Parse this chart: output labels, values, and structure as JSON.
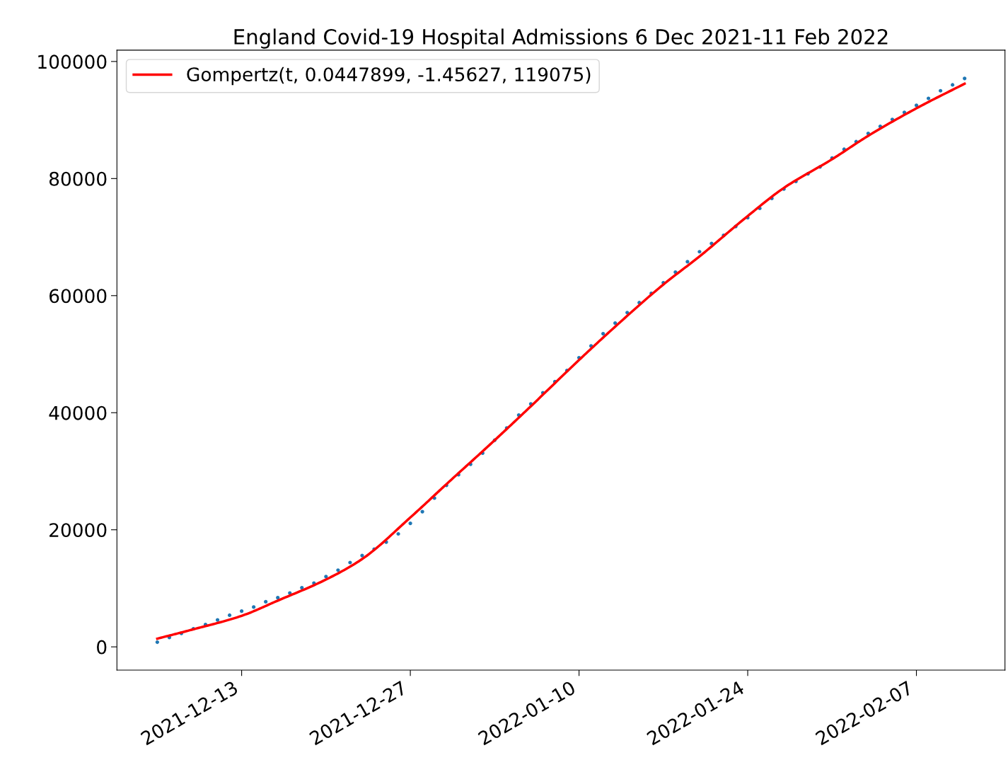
{
  "chart_data": {
    "type": "scatter",
    "title": "England Covid-19 Hospital Admissions 6 Dec 2021-11 Feb 2022",
    "series": [
      {
        "color": "#1f77b4",
        "marker": "circle",
        "x": [
          "2021-12-06",
          "2021-12-07",
          "2021-12-08",
          "2021-12-09",
          "2021-12-10",
          "2021-12-11",
          "2021-12-12",
          "2021-12-13",
          "2021-12-14",
          "2021-12-15",
          "2021-12-16",
          "2021-12-17",
          "2021-12-18",
          "2021-12-19",
          "2021-12-20",
          "2021-12-21",
          "2021-12-22",
          "2021-12-23",
          "2021-12-24",
          "2021-12-25",
          "2021-12-26",
          "2021-12-27",
          "2021-12-28",
          "2021-12-29",
          "2021-12-30",
          "2021-12-31",
          "2022-01-01",
          "2022-01-02",
          "2022-01-03",
          "2022-01-04",
          "2022-01-05",
          "2022-01-06",
          "2022-01-07",
          "2022-01-08",
          "2022-01-09",
          "2022-01-10",
          "2022-01-11",
          "2022-01-12",
          "2022-01-13",
          "2022-01-14",
          "2022-01-15",
          "2022-01-16",
          "2022-01-17",
          "2022-01-18",
          "2022-01-19",
          "2022-01-20",
          "2022-01-21",
          "2022-01-22",
          "2022-01-23",
          "2022-01-24",
          "2022-01-25",
          "2022-01-26",
          "2022-01-27",
          "2022-01-28",
          "2022-01-29",
          "2022-01-30",
          "2022-01-31",
          "2022-02-01",
          "2022-02-02",
          "2022-02-03",
          "2022-02-04",
          "2022-02-05",
          "2022-02-06",
          "2022-02-07",
          "2022-02-08",
          "2022-02-09",
          "2022-02-10",
          "2022-02-11"
        ],
        "values": [
          800,
          1600,
          2300,
          3100,
          3800,
          4600,
          5400,
          6100,
          6800,
          7700,
          8400,
          9200,
          10100,
          10900,
          12000,
          13100,
          14400,
          15600,
          16700,
          17900,
          19300,
          21100,
          23100,
          25400,
          27600,
          29400,
          31200,
          33100,
          35300,
          37400,
          39600,
          41500,
          43400,
          45300,
          47200,
          49400,
          51400,
          53500,
          55300,
          57100,
          58800,
          60400,
          62200,
          64000,
          65800,
          67500,
          68900,
          70300,
          71800,
          73300,
          74900,
          76600,
          78200,
          79500,
          80800,
          82000,
          83500,
          85000,
          86300,
          87700,
          88900,
          90100,
          91300,
          92500,
          93700,
          95000,
          96000,
          97100
        ]
      },
      {
        "type": "line",
        "name": "Gompertz(t, 0.0447899, -1.45627, 119075)",
        "color": "#ff0000",
        "marker": "none",
        "line_style": "solid",
        "x": [
          "2021-12-06",
          "2021-12-09",
          "2021-12-13",
          "2021-12-16",
          "2021-12-20",
          "2021-12-23",
          "2021-12-27",
          "2021-12-30",
          "2022-01-03",
          "2022-01-06",
          "2022-01-10",
          "2022-01-13",
          "2022-01-17",
          "2022-01-20",
          "2022-01-24",
          "2022-01-27",
          "2022-01-31",
          "2022-02-03",
          "2022-02-07",
          "2022-02-11"
        ],
        "values": [
          1400,
          3000,
          5300,
          7900,
          11500,
          15000,
          22100,
          27800,
          35300,
          41100,
          49000,
          54700,
          61900,
          66700,
          73600,
          78400,
          83300,
          87300,
          92000,
          96200
        ]
      }
    ],
    "xlim": [
      "2021-12-02T15:36",
      "2022-02-14T08:24"
    ],
    "xticks": [
      "2021-12-13",
      "2021-12-27",
      "2022-01-10",
      "2022-01-24",
      "2022-02-07"
    ],
    "ylim": [
      -3970,
      101930
    ],
    "yticks": [
      0,
      20000,
      40000,
      60000,
      80000,
      100000
    ],
    "grid": false,
    "legend": "top left"
  }
}
